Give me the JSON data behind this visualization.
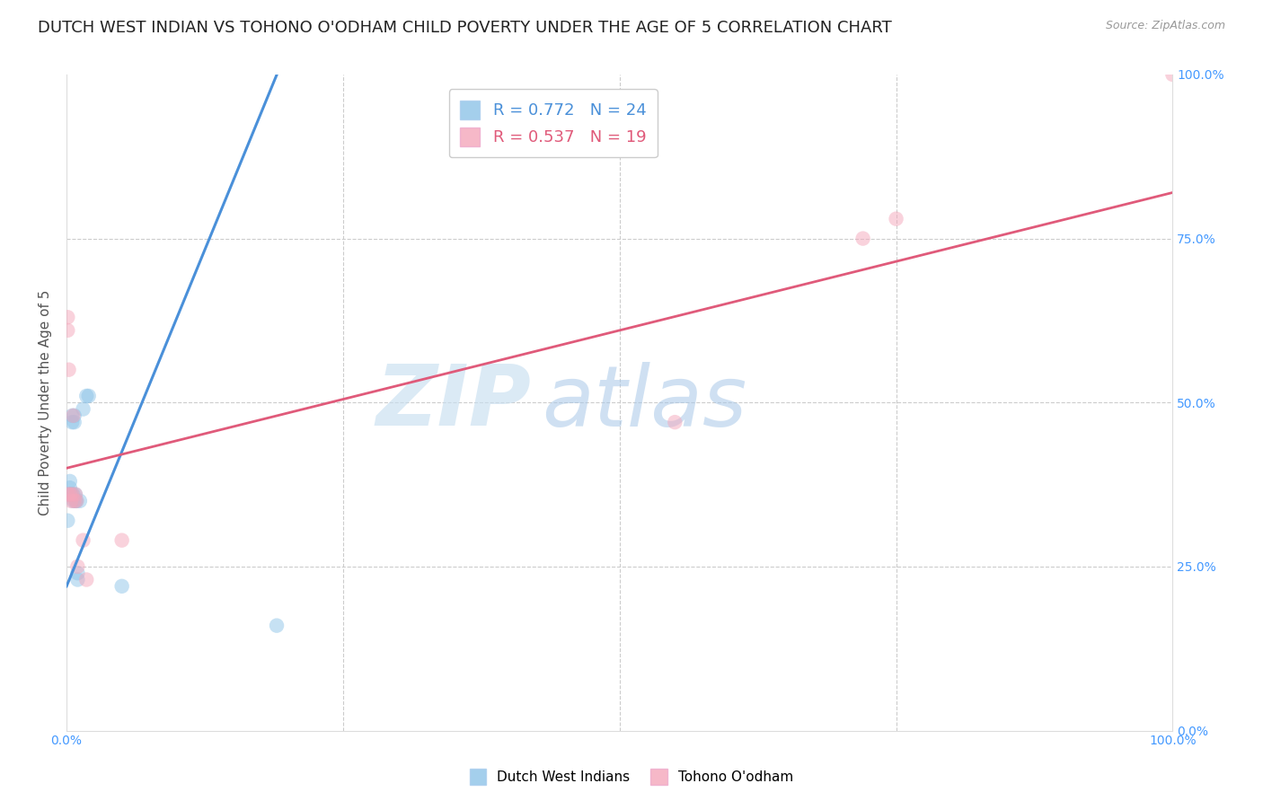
{
  "title": "DUTCH WEST INDIAN VS TOHONO O'ODHAM CHILD POVERTY UNDER THE AGE OF 5 CORRELATION CHART",
  "source": "Source: ZipAtlas.com",
  "ylabel": "Child Poverty Under the Age of 5",
  "xlim": [
    0,
    1.0
  ],
  "ylim": [
    0,
    1.0
  ],
  "color_blue": "#8ec4e8",
  "color_pink": "#f4a7bb",
  "color_blue_line": "#4a90d9",
  "color_pink_line": "#e05a7a",
  "watermark_zip": "ZIP",
  "watermark_atlas": "atlas",
  "blue_x": [
    0.001,
    0.001,
    0.003,
    0.003,
    0.003,
    0.004,
    0.005,
    0.005,
    0.005,
    0.006,
    0.006,
    0.007,
    0.007,
    0.008,
    0.008,
    0.009,
    0.01,
    0.01,
    0.012,
    0.015,
    0.018,
    0.02,
    0.05,
    0.19
  ],
  "blue_y": [
    0.36,
    0.32,
    0.38,
    0.37,
    0.36,
    0.36,
    0.48,
    0.47,
    0.36,
    0.36,
    0.35,
    0.47,
    0.48,
    0.36,
    0.35,
    0.35,
    0.24,
    0.23,
    0.35,
    0.49,
    0.51,
    0.51,
    0.22,
    0.16
  ],
  "pink_x": [
    0.001,
    0.001,
    0.001,
    0.002,
    0.003,
    0.004,
    0.005,
    0.006,
    0.007,
    0.008,
    0.009,
    0.01,
    0.015,
    0.018,
    0.05,
    0.55,
    0.72,
    0.75,
    1.0
  ],
  "pink_y": [
    0.63,
    0.61,
    0.36,
    0.55,
    0.36,
    0.35,
    0.36,
    0.48,
    0.35,
    0.36,
    0.35,
    0.25,
    0.29,
    0.23,
    0.29,
    0.47,
    0.75,
    0.78,
    1.0
  ],
  "blue_trend_x": [
    0.0,
    0.195
  ],
  "blue_trend_y": [
    0.22,
    1.02
  ],
  "pink_trend_x": [
    0.0,
    1.0
  ],
  "pink_trend_y": [
    0.4,
    0.82
  ],
  "marker_size": 140,
  "title_fontsize": 13,
  "axis_fontsize": 11
}
